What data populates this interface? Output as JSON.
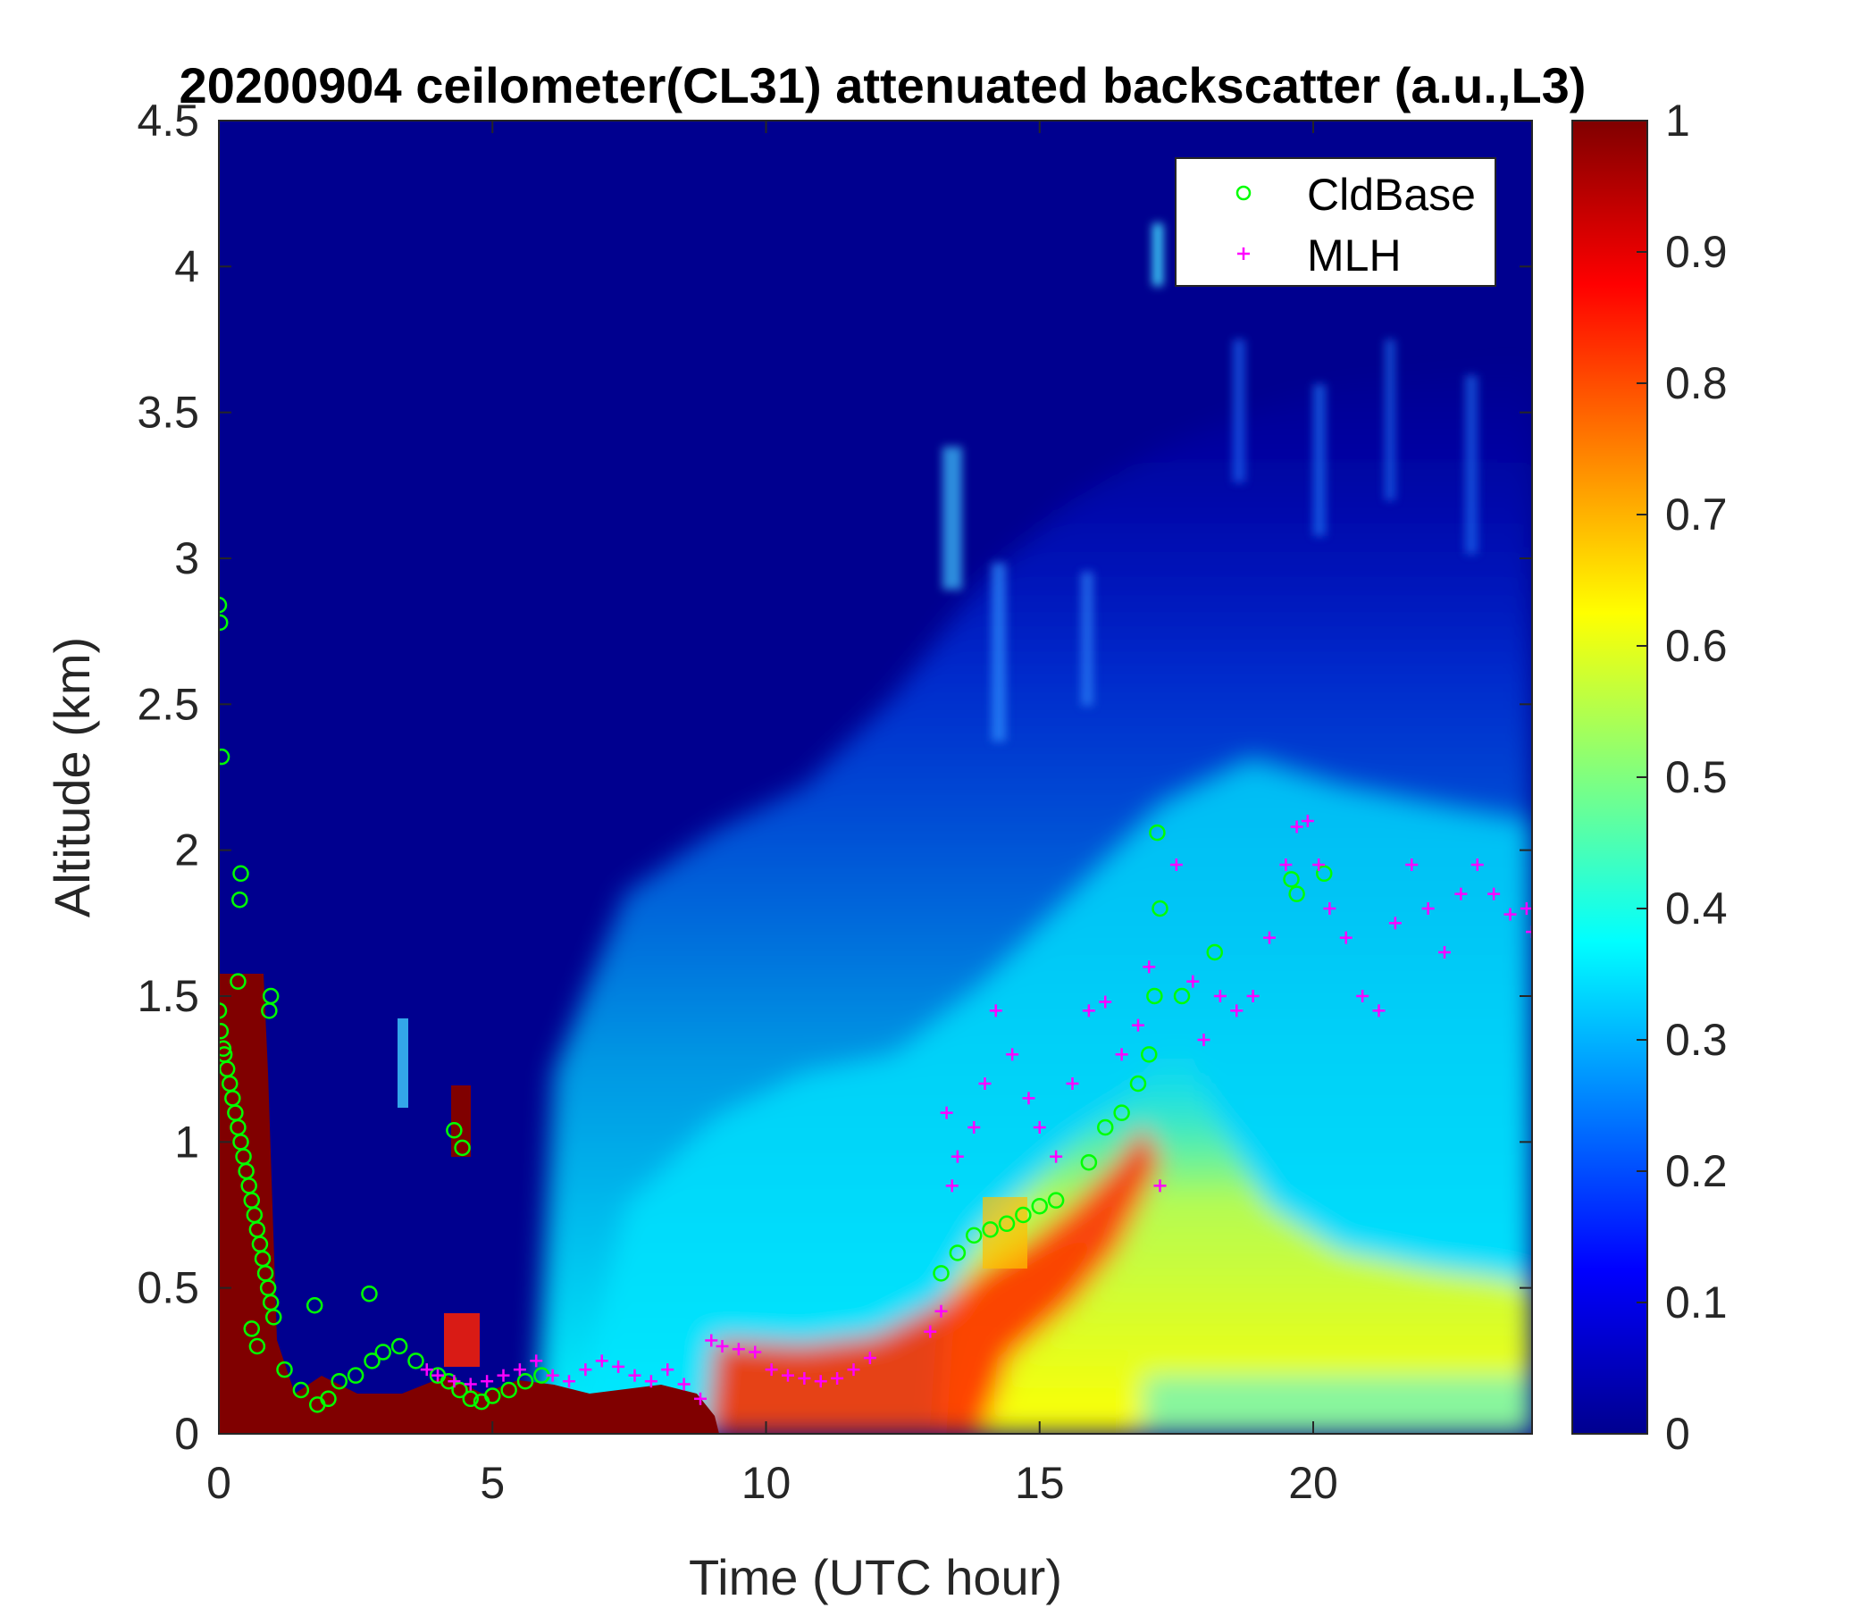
{
  "chart_data": {
    "type": "heatmap",
    "title": "20200904 ceilometer(CL31) attenuated backscatter (a.u.,L3)",
    "xlabel": "Time (UTC hour)",
    "ylabel": "Altitude (km)",
    "xlim": [
      0,
      24
    ],
    "ylim": [
      0,
      4.5
    ],
    "xticks": [
      0,
      5,
      10,
      15,
      20
    ],
    "xtick_labels": [
      "0",
      "5",
      "10",
      "15",
      "20"
    ],
    "yticks": [
      0,
      0.5,
      1,
      1.5,
      2,
      2.5,
      3,
      3.5,
      4,
      4.5
    ],
    "ytick_labels": [
      "0",
      "0.5",
      "1",
      "1.5",
      "2",
      "2.5",
      "3",
      "3.5",
      "4",
      "4.5"
    ],
    "colorbar": {
      "colormap": "jet",
      "range": [
        0,
        1
      ],
      "ticks": [
        0,
        0.1,
        0.2,
        0.3,
        0.4,
        0.5,
        0.6,
        0.7,
        0.8,
        0.9,
        1
      ],
      "tick_labels": [
        "0",
        "0.1",
        "0.2",
        "0.3",
        "0.4",
        "0.5",
        "0.6",
        "0.7",
        "0.8",
        "0.9",
        "1"
      ]
    },
    "legend": {
      "position": "top-right",
      "entries": [
        {
          "label": "CldBase",
          "marker": "circle",
          "color": "#00ff00"
        },
        {
          "label": "MLH",
          "marker": "plus",
          "color": "#ff00ff"
        }
      ]
    },
    "series": [
      {
        "name": "CldBase",
        "x": [
          0.0,
          0.02,
          0.05,
          0.0,
          0.03,
          0.08,
          0.1,
          0.15,
          0.2,
          0.25,
          0.3,
          0.35,
          0.4,
          0.45,
          0.5,
          0.55,
          0.6,
          0.65,
          0.7,
          0.75,
          0.8,
          0.85,
          0.9,
          0.95,
          1.0,
          0.4,
          0.38,
          0.35,
          0.95,
          0.92,
          0.6,
          0.7,
          1.2,
          1.5,
          1.8,
          2.0,
          2.2,
          2.5,
          2.8,
          3.0,
          3.3,
          3.6,
          4.0,
          4.2,
          4.4,
          4.6,
          4.8,
          5.0,
          5.3,
          5.6,
          5.9,
          2.75,
          1.75,
          4.3,
          4.45,
          13.2,
          13.5,
          13.8,
          14.1,
          14.4,
          14.7,
          15.0,
          15.3,
          15.9,
          16.2,
          16.5,
          16.8,
          17.0,
          17.1,
          17.2,
          17.15,
          17.6,
          18.2,
          19.6,
          19.7,
          20.2
        ],
        "y": [
          2.84,
          2.78,
          2.32,
          1.45,
          1.38,
          1.32,
          1.3,
          1.25,
          1.2,
          1.15,
          1.1,
          1.05,
          1.0,
          0.95,
          0.9,
          0.85,
          0.8,
          0.75,
          0.7,
          0.65,
          0.6,
          0.55,
          0.5,
          0.45,
          0.4,
          1.92,
          1.83,
          1.55,
          1.5,
          1.45,
          0.36,
          0.3,
          0.22,
          0.15,
          0.1,
          0.12,
          0.18,
          0.2,
          0.25,
          0.28,
          0.3,
          0.25,
          0.2,
          0.18,
          0.15,
          0.12,
          0.11,
          0.13,
          0.15,
          0.18,
          0.2,
          0.48,
          0.44,
          1.04,
          0.98,
          0.55,
          0.62,
          0.68,
          0.7,
          0.72,
          0.75,
          0.78,
          0.8,
          0.93,
          1.05,
          1.1,
          1.2,
          1.3,
          1.5,
          1.8,
          2.06,
          1.5,
          1.65,
          1.9,
          1.85,
          1.92
        ]
      },
      {
        "name": "MLH",
        "x": [
          3.8,
          4.0,
          4.3,
          4.6,
          4.9,
          5.2,
          5.5,
          5.8,
          6.1,
          6.4,
          6.7,
          7.0,
          7.3,
          7.6,
          7.9,
          8.2,
          8.5,
          8.8,
          9.0,
          9.2,
          9.5,
          9.8,
          10.1,
          10.4,
          10.7,
          11.0,
          11.3,
          11.6,
          11.9,
          13.0,
          13.2,
          13.4,
          13.3,
          13.5,
          13.8,
          14.0,
          14.2,
          14.5,
          14.8,
          15.0,
          15.3,
          15.6,
          15.9,
          16.2,
          16.5,
          16.8,
          17.0,
          17.2,
          17.5,
          17.8,
          18.0,
          18.3,
          18.6,
          18.9,
          19.2,
          19.5,
          19.7,
          19.9,
          20.1,
          20.3,
          20.6,
          20.9,
          21.2,
          21.5,
          21.8,
          22.1,
          22.4,
          22.7,
          23.0,
          23.3,
          23.6,
          23.9,
          24.0
        ],
        "y": [
          0.22,
          0.2,
          0.18,
          0.17,
          0.18,
          0.2,
          0.22,
          0.25,
          0.2,
          0.18,
          0.22,
          0.25,
          0.23,
          0.2,
          0.18,
          0.22,
          0.17,
          0.12,
          0.32,
          0.3,
          0.29,
          0.28,
          0.22,
          0.2,
          0.19,
          0.18,
          0.19,
          0.22,
          0.26,
          0.35,
          0.42,
          0.85,
          1.1,
          0.95,
          1.05,
          1.2,
          1.45,
          1.3,
          1.15,
          1.05,
          0.95,
          1.2,
          1.45,
          1.48,
          1.3,
          1.4,
          1.6,
          0.85,
          1.95,
          1.55,
          1.35,
          1.5,
          1.45,
          1.5,
          1.7,
          1.95,
          2.08,
          2.1,
          1.95,
          1.8,
          1.7,
          1.5,
          1.45,
          1.75,
          1.95,
          1.8,
          1.65,
          1.85,
          1.95,
          1.85,
          1.78,
          1.8,
          1.72
        ]
      }
    ]
  }
}
